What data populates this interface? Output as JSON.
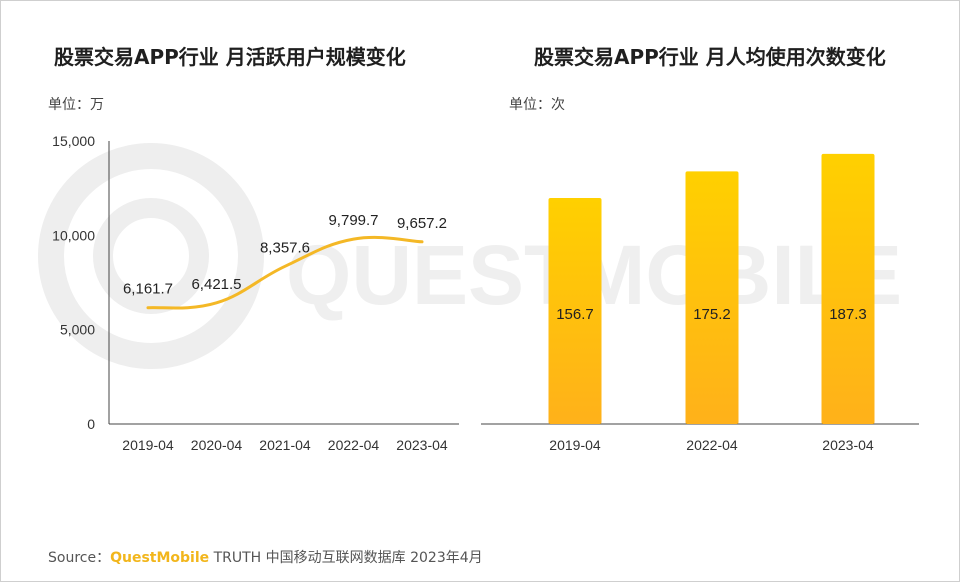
{
  "colors": {
    "line": "#f4b826",
    "bar_top": "#ffd000",
    "bar_bottom": "#ffb11a",
    "axis": "#444444",
    "watermark": "#eeeeee"
  },
  "watermark": {
    "text": "QUESTMOBILE"
  },
  "source": {
    "prefix": "Source：",
    "brand": "QuestMobile",
    "rest": " TRUTH 中国移动互联网数据库 2023年4月"
  },
  "chart_data": [
    {
      "type": "line",
      "title": "股票交易APP行业 月活跃用户规模变化",
      "unit": "单位：万",
      "categories": [
        "2019-04",
        "2020-04",
        "2021-04",
        "2022-04",
        "2023-04"
      ],
      "values": [
        6161.7,
        6421.5,
        8357.6,
        9799.7,
        9657.2
      ],
      "labels": [
        "6,161.7",
        "6,421.5",
        "8,357.6",
        "9,799.7",
        "9,657.2"
      ],
      "yticks": [
        "0",
        "5,000",
        "10,000",
        "15,000"
      ],
      "ylim": [
        0,
        15000
      ],
      "grid": false
    },
    {
      "type": "bar",
      "title": "股票交易APP行业 月人均使用次数变化",
      "unit": "单位：次",
      "categories": [
        "2019-04",
        "2022-04",
        "2023-04"
      ],
      "values": [
        156.7,
        175.2,
        187.3
      ],
      "labels": [
        "156.7",
        "175.2",
        "187.3"
      ],
      "grid": false
    }
  ]
}
